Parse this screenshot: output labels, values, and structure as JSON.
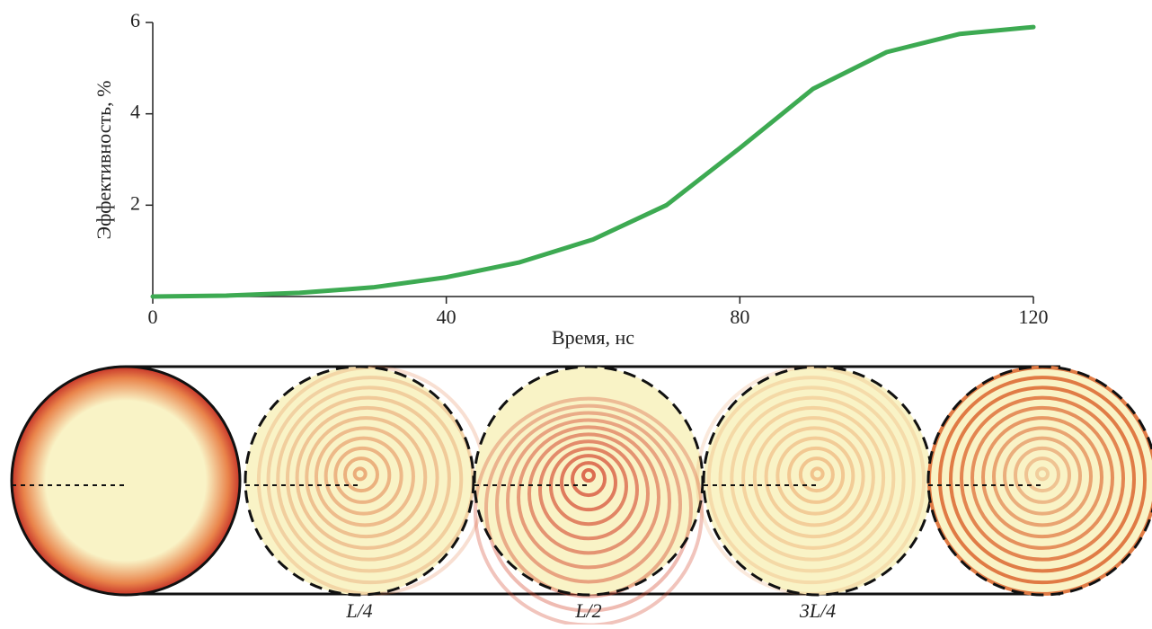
{
  "chart_data": {
    "type": "line",
    "y_label": "Эффективность, %",
    "x_label": "Время, нс",
    "x": [
      0,
      10,
      20,
      30,
      40,
      50,
      60,
      70,
      80,
      90,
      100,
      110,
      120
    ],
    "series": [
      {
        "color": "#3daa52",
        "values": [
          0,
          0.02,
          0.08,
          0.2,
          0.42,
          0.75,
          1.25,
          2.0,
          3.25,
          4.55,
          5.35,
          5.75,
          5.9
        ]
      }
    ],
    "xlim": [
      0,
      120
    ],
    "ylim": [
      0,
      6
    ],
    "xticks": [
      0,
      40,
      80,
      120
    ],
    "yticks": [
      2,
      4,
      6
    ]
  },
  "panels": {
    "labels": [
      "L/4",
      "L/2",
      "3L/4"
    ]
  }
}
